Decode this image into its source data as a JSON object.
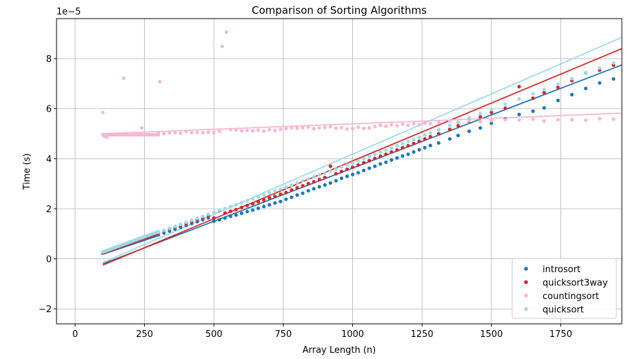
{
  "chart_data": {
    "type": "scatter",
    "title": "Comparison of Sorting Algorithms",
    "xlabel": "Array Length (n)",
    "ylabel": "Time (s)",
    "y_offset_label": "1e−5",
    "xlim": [
      -67,
      1970
    ],
    "ylim": [
      -2.6,
      9.6
    ],
    "x_ticks": [
      0,
      250,
      500,
      750,
      1000,
      1250,
      1500,
      1750
    ],
    "y_ticks": [
      -2,
      0,
      2,
      4,
      6,
      8
    ],
    "grid": true,
    "legend_position": "lower-right",
    "series": [
      {
        "name": "introsort",
        "color": "#1f77b4",
        "fit": {
          "x0": 100,
          "y0": -0.2,
          "x1": 1970,
          "y1": 7.75
        },
        "dense": {
          "from": 100,
          "to": 300,
          "step": 5,
          "slope": 0.0371,
          "intercept": -1.42
        },
        "points": [
          [
            300,
            9.6
          ],
          [
            320,
            10.35
          ],
          [
            340,
            11.1
          ],
          [
            360,
            11.85
          ],
          [
            380,
            12.6
          ],
          [
            400,
            13.35
          ],
          [
            420,
            14.1
          ],
          [
            440,
            14.85
          ],
          [
            460,
            15.6
          ],
          [
            480,
            16.35
          ],
          [
            500,
            15.0
          ],
          [
            520,
            15.6
          ],
          [
            540,
            16.3
          ],
          [
            560,
            17.0
          ],
          [
            580,
            17.5
          ],
          [
            600,
            18.2
          ],
          [
            620,
            18.9
          ],
          [
            640,
            19.5
          ],
          [
            660,
            20.2
          ],
          [
            680,
            20.9
          ],
          [
            700,
            21.6
          ],
          [
            720,
            22.3
          ],
          [
            740,
            22.9
          ],
          [
            760,
            23.8
          ],
          [
            780,
            24.6
          ],
          [
            800,
            25.5
          ],
          [
            820,
            26.2
          ],
          [
            840,
            27.2
          ],
          [
            860,
            28.0
          ],
          [
            880,
            28.8
          ],
          [
            900,
            29.5
          ],
          [
            920,
            30.3
          ],
          [
            940,
            31.2
          ],
          [
            960,
            32.2
          ],
          [
            980,
            33.0
          ],
          [
            1000,
            33.7
          ],
          [
            1020,
            34.4
          ],
          [
            1040,
            35.3
          ],
          [
            1060,
            36.2
          ],
          [
            1080,
            37.0
          ],
          [
            1100,
            37.9
          ],
          [
            1120,
            38.6
          ],
          [
            1140,
            39.5
          ],
          [
            1160,
            40.3
          ],
          [
            1180,
            41.1
          ],
          [
            1200,
            41.8
          ],
          [
            1220,
            42.7
          ],
          [
            1240,
            43.6
          ],
          [
            1260,
            44.4
          ],
          [
            1280,
            45.3
          ],
          [
            1310,
            46.3
          ],
          [
            1350,
            47.9
          ],
          [
            1380,
            49.3
          ],
          [
            1420,
            51.0
          ],
          [
            1460,
            52.3
          ],
          [
            1500,
            54.2
          ],
          [
            1550,
            55.9
          ],
          [
            1600,
            57.7
          ],
          [
            1650,
            59.0
          ],
          [
            1690,
            60.3
          ],
          [
            1740,
            63.3
          ],
          [
            1790,
            65.6
          ],
          [
            1840,
            68.1
          ],
          [
            1890,
            70.3
          ],
          [
            1940,
            71.9
          ]
        ]
      },
      {
        "name": "quicksort3way",
        "color": "#d62728",
        "fit": {
          "x0": 100,
          "y0": -0.25,
          "x1": 1970,
          "y1": 8.4
        },
        "dense": {
          "from": 100,
          "to": 300,
          "step": 5,
          "slope": 0.0396,
          "intercept": -1.5
        },
        "points": [
          [
            300,
            10.3
          ],
          [
            320,
            11.2
          ],
          [
            340,
            12.0
          ],
          [
            360,
            12.8
          ],
          [
            380,
            13.5
          ],
          [
            400,
            14.2
          ],
          [
            420,
            15.0
          ],
          [
            440,
            15.8
          ],
          [
            460,
            16.5
          ],
          [
            480,
            17.3
          ],
          [
            500,
            16.3
          ],
          [
            520,
            19.2
          ],
          [
            540,
            18.3
          ],
          [
            560,
            19.0
          ],
          [
            580,
            19.7
          ],
          [
            600,
            20.5
          ],
          [
            620,
            21.3
          ],
          [
            640,
            22.0
          ],
          [
            660,
            22.8
          ],
          [
            680,
            23.5
          ],
          [
            700,
            24.3
          ],
          [
            720,
            25.0
          ],
          [
            740,
            25.8
          ],
          [
            760,
            26.5
          ],
          [
            780,
            27.5
          ],
          [
            800,
            28.4
          ],
          [
            820,
            29.2
          ],
          [
            840,
            30.1
          ],
          [
            860,
            30.8
          ],
          [
            880,
            31.7
          ],
          [
            900,
            32.5
          ],
          [
            920,
            37.0
          ],
          [
            940,
            34.0
          ],
          [
            960,
            34.9
          ],
          [
            980,
            35.8
          ],
          [
            1000,
            36.6
          ],
          [
            1020,
            37.5
          ],
          [
            1040,
            38.4
          ],
          [
            1060,
            39.2
          ],
          [
            1080,
            40.1
          ],
          [
            1100,
            41.0
          ],
          [
            1120,
            41.8
          ],
          [
            1140,
            42.7
          ],
          [
            1160,
            43.5
          ],
          [
            1180,
            44.4
          ],
          [
            1200,
            45.2
          ],
          [
            1220,
            46.1
          ],
          [
            1240,
            47.0
          ],
          [
            1260,
            47.9
          ],
          [
            1280,
            48.8
          ],
          [
            1310,
            50.0
          ],
          [
            1350,
            51.7
          ],
          [
            1380,
            53.2
          ],
          [
            1420,
            55.0
          ],
          [
            1460,
            56.7
          ],
          [
            1500,
            58.5
          ],
          [
            1550,
            60.2
          ],
          [
            1600,
            68.8
          ],
          [
            1650,
            64.2
          ],
          [
            1690,
            66.4
          ],
          [
            1740,
            68.5
          ],
          [
            1790,
            71.2
          ],
          [
            1840,
            74.2
          ],
          [
            1890,
            75.4
          ],
          [
            1940,
            77.4
          ]
        ]
      },
      {
        "name": "countingsort",
        "color": "#f7b6d2",
        "fit": {
          "x0": 100,
          "y0": 5.0,
          "x1": 1970,
          "y1": 5.82
        },
        "dense": {
          "from": 100,
          "to": 300,
          "step": 5,
          "slope": 0.0,
          "intercept": 49.6
        },
        "points": [
          [
            100,
            58.5
          ],
          [
            105,
            49.0
          ],
          [
            110,
            48.8
          ],
          [
            115,
            48.7
          ],
          [
            175,
            72.2
          ],
          [
            240,
            52.3
          ],
          [
            305,
            70.8
          ],
          [
            530,
            84.9
          ],
          [
            545,
            90.6
          ],
          [
            300,
            50.2
          ],
          [
            320,
            50.0
          ],
          [
            340,
            50.3
          ],
          [
            360,
            50.4
          ],
          [
            380,
            50.2
          ],
          [
            400,
            50.9
          ],
          [
            420,
            50.4
          ],
          [
            440,
            50.5
          ],
          [
            460,
            50.4
          ],
          [
            480,
            50.6
          ],
          [
            500,
            50.5
          ],
          [
            520,
            51.0
          ],
          [
            560,
            51.7
          ],
          [
            580,
            51.5
          ],
          [
            600,
            51.2
          ],
          [
            620,
            51.3
          ],
          [
            640,
            51.1
          ],
          [
            660,
            51.4
          ],
          [
            680,
            51.0
          ],
          [
            700,
            51.6
          ],
          [
            720,
            51.3
          ],
          [
            740,
            51.8
          ],
          [
            760,
            52.0
          ],
          [
            780,
            52.3
          ],
          [
            800,
            52.2
          ],
          [
            820,
            52.4
          ],
          [
            840,
            52.6
          ],
          [
            860,
            52.0
          ],
          [
            880,
            52.3
          ],
          [
            900,
            52.5
          ],
          [
            920,
            52.8
          ],
          [
            940,
            52.2
          ],
          [
            960,
            52.4
          ],
          [
            980,
            51.9
          ],
          [
            1000,
            52.1
          ],
          [
            1020,
            52.6
          ],
          [
            1040,
            52.1
          ],
          [
            1060,
            52.3
          ],
          [
            1080,
            52.9
          ],
          [
            1100,
            53.4
          ],
          [
            1120,
            53.0
          ],
          [
            1140,
            53.6
          ],
          [
            1160,
            53.2
          ],
          [
            1180,
            53.8
          ],
          [
            1200,
            53.4
          ],
          [
            1220,
            54.0
          ],
          [
            1240,
            53.6
          ],
          [
            1260,
            54.2
          ],
          [
            1280,
            54.0
          ],
          [
            1310,
            54.5
          ],
          [
            1350,
            55.0
          ],
          [
            1380,
            54.5
          ],
          [
            1420,
            55.2
          ],
          [
            1460,
            54.8
          ],
          [
            1500,
            55.2
          ],
          [
            1550,
            55.6
          ],
          [
            1600,
            55.4
          ],
          [
            1650,
            55.8
          ],
          [
            1690,
            55.1
          ],
          [
            1740,
            55.6
          ],
          [
            1790,
            55.6
          ],
          [
            1840,
            55.4
          ],
          [
            1890,
            56.0
          ],
          [
            1940,
            55.8
          ]
        ]
      },
      {
        "name": "quicksort",
        "color": "#9edae5",
        "fit": {
          "x0": 100,
          "y0": -0.15,
          "x1": 1970,
          "y1": 8.85
        },
        "dense": {
          "from": 100,
          "to": 300,
          "step": 5,
          "slope": 0.0405,
          "intercept": -1.3
        },
        "points": [
          [
            300,
            10.6
          ],
          [
            320,
            11.4
          ],
          [
            340,
            12.2
          ],
          [
            360,
            13.0
          ],
          [
            380,
            13.8
          ],
          [
            400,
            14.6
          ],
          [
            420,
            15.4
          ],
          [
            440,
            16.2
          ],
          [
            460,
            17.0
          ],
          [
            480,
            17.8
          ],
          [
            500,
            18.6
          ],
          [
            520,
            19.4
          ],
          [
            540,
            20.1
          ],
          [
            560,
            20.9
          ],
          [
            580,
            21.6
          ],
          [
            600,
            22.4
          ],
          [
            620,
            23.2
          ],
          [
            640,
            24.0
          ],
          [
            660,
            24.8
          ],
          [
            680,
            25.6
          ],
          [
            700,
            26.4
          ],
          [
            720,
            27.1
          ],
          [
            740,
            27.9
          ],
          [
            760,
            28.7
          ],
          [
            780,
            29.5
          ],
          [
            800,
            30.3
          ],
          [
            820,
            31.1
          ],
          [
            840,
            31.9
          ],
          [
            860,
            32.7
          ],
          [
            880,
            33.5
          ],
          [
            900,
            34.3
          ],
          [
            920,
            35.1
          ],
          [
            940,
            35.9
          ],
          [
            960,
            36.7
          ],
          [
            980,
            37.5
          ],
          [
            1000,
            38.3
          ],
          [
            1020,
            39.1
          ],
          [
            1040,
            40.0
          ],
          [
            1060,
            40.9
          ],
          [
            1080,
            41.7
          ],
          [
            1100,
            42.6
          ],
          [
            1120,
            43.4
          ],
          [
            1140,
            44.3
          ],
          [
            1160,
            45.2
          ],
          [
            1180,
            46.0
          ],
          [
            1200,
            46.9
          ],
          [
            1220,
            47.7
          ],
          [
            1240,
            48.6
          ],
          [
            1260,
            49.5
          ],
          [
            1280,
            50.3
          ],
          [
            1310,
            51.6
          ],
          [
            1350,
            53.3
          ],
          [
            1380,
            54.6
          ],
          [
            1420,
            56.3
          ],
          [
            1460,
            58.0
          ],
          [
            1500,
            59.7
          ],
          [
            1550,
            61.8
          ],
          [
            1600,
            63.9
          ],
          [
            1650,
            66.0
          ],
          [
            1690,
            67.7
          ],
          [
            1740,
            69.8
          ],
          [
            1790,
            72.0
          ],
          [
            1840,
            74.1
          ],
          [
            1890,
            76.2
          ],
          [
            1940,
            78.3
          ]
        ]
      }
    ]
  }
}
